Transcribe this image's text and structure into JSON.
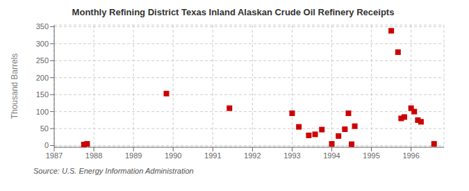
{
  "chart_data": {
    "type": "scatter",
    "title": "Monthly Refining District Texas Inland Alaskan Crude Oil Refinery Receipts",
    "y_label": "Thousand Barrels",
    "annotations": [
      "Source: U.S. Energy Information Administration"
    ],
    "x": [
      1987.75,
      1987.83,
      1989.83,
      1991.42,
      1993.0,
      1993.17,
      1993.42,
      1993.58,
      1993.75,
      1994.0,
      1994.17,
      1994.33,
      1994.42,
      1994.5,
      1994.58,
      1995.5,
      1995.67,
      1995.75,
      1995.83,
      1996.0,
      1996.08,
      1996.17,
      1996.25,
      1996.58
    ],
    "values": [
      3,
      5,
      153,
      110,
      95,
      55,
      30,
      33,
      47,
      5,
      28,
      48,
      95,
      4,
      57,
      338,
      275,
      80,
      84,
      110,
      100,
      75,
      70,
      5
    ],
    "color": "#CC0000",
    "marker": "square",
    "xlim": [
      1987.0,
      1996.83
    ],
    "ylim": [
      -5,
      355
    ],
    "xticks": [
      1987,
      1988,
      1989,
      1990,
      1991,
      1992,
      1993,
      1994,
      1995,
      1996
    ],
    "yticks": [
      0,
      50,
      100,
      150,
      200,
      250,
      300,
      350
    ],
    "grid": true
  }
}
